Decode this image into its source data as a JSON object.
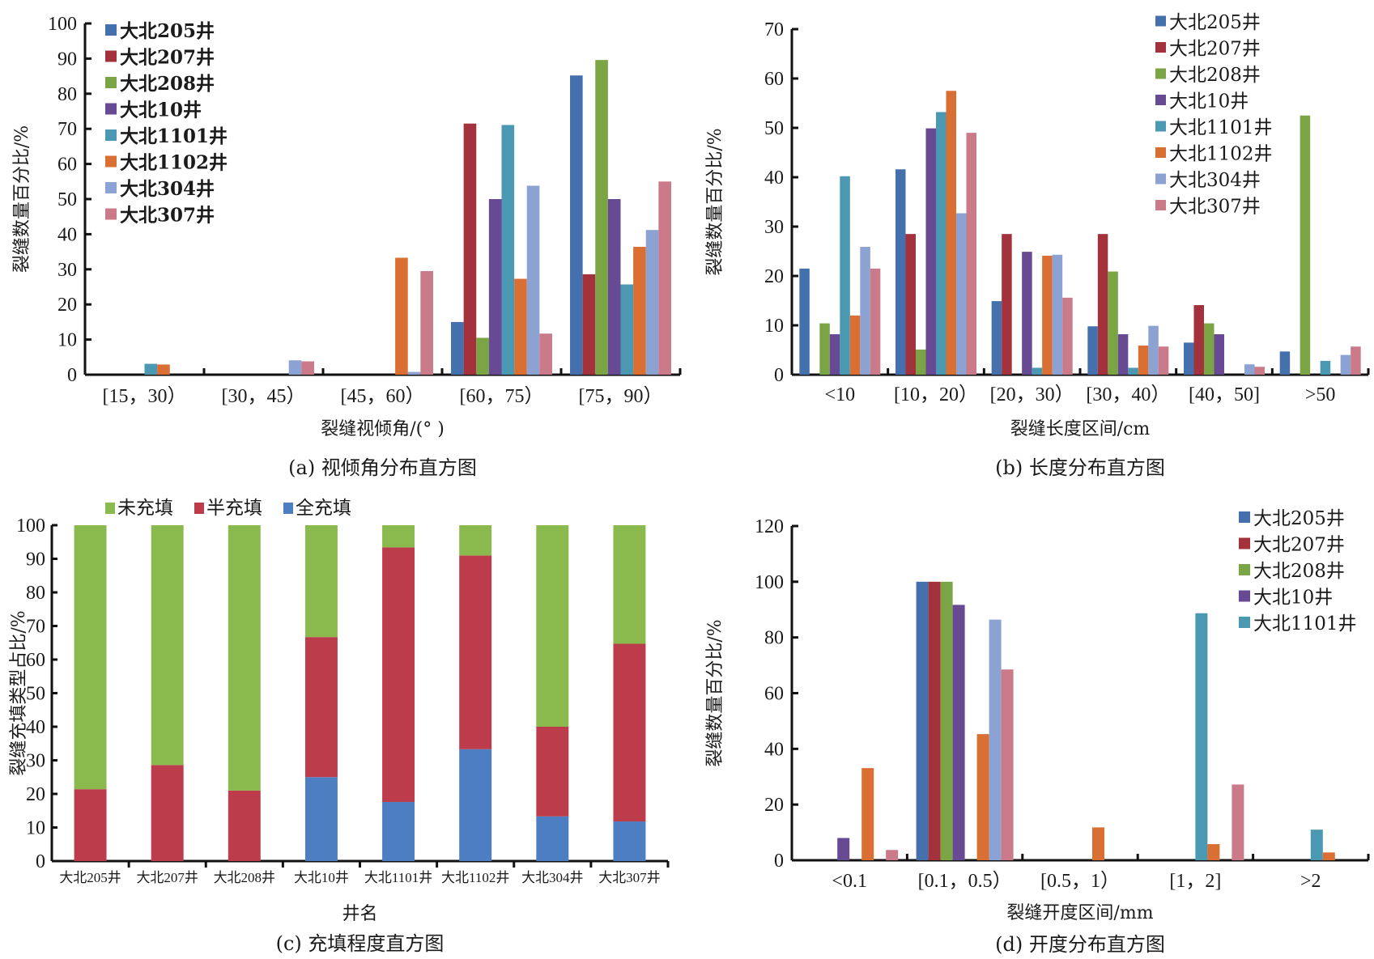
{
  "colors": {
    "大北205井": "#4470ae",
    "大北207井": "#a3323d",
    "大北208井": "#7ba444",
    "大北10井": "#674a93",
    "大北1101井": "#4a98b2",
    "大北1102井": "#d96f33",
    "大北304井": "#8ba2d2",
    "大北307井": "#cb7a89",
    "未充填": "#8aba4e",
    "半充填": "#bc3c4c",
    "全充填": "#4e7ec2"
  },
  "chart_data": [
    {
      "id": "a",
      "type": "bar",
      "caption": "(a) 视倾角分布直方图",
      "title": "",
      "xlabel": "裂缝视倾角/(° )",
      "ylabel": "裂缝数量百分比/%",
      "ylim": [
        0,
        100
      ],
      "yticks": [
        0,
        10,
        20,
        30,
        40,
        50,
        60,
        70,
        80,
        90,
        100
      ],
      "legend_position": "top-left",
      "categories": [
        "[15, 30)",
        "[30, 45)",
        "[45, 60)",
        "[60, 75)",
        "[75, 90)"
      ],
      "category_labels": [
        "[15，30）",
        "[30，45）",
        "[45，60）",
        "[60，75）",
        "[75，90）"
      ],
      "series": [
        {
          "name": "大北205井",
          "values": [
            0,
            0,
            0,
            15.0,
            85.2
          ]
        },
        {
          "name": "大北207井",
          "values": [
            0,
            0,
            0,
            71.5,
            28.6
          ]
        },
        {
          "name": "大北208井",
          "values": [
            0,
            0,
            0,
            10.5,
            89.6
          ]
        },
        {
          "name": "大北10井",
          "values": [
            0,
            0,
            0,
            50.0,
            50.0
          ]
        },
        {
          "name": "大北1101井",
          "values": [
            3.1,
            0,
            0,
            71.1,
            25.7
          ]
        },
        {
          "name": "大北1102井",
          "values": [
            2.9,
            0,
            33.3,
            27.3,
            36.4
          ]
        },
        {
          "name": "大北304井",
          "values": [
            0,
            4.1,
            0.8,
            53.8,
            41.2
          ]
        },
        {
          "name": "大北307井",
          "values": [
            0,
            3.8,
            29.5,
            11.7,
            55.0
          ]
        }
      ]
    },
    {
      "id": "b",
      "type": "bar",
      "caption": "(b) 长度分布直方图",
      "title": "",
      "xlabel": "裂缝长度区间/cm",
      "ylabel": "裂缝数量百分比/%",
      "ylim": [
        0,
        70
      ],
      "yticks": [
        0,
        10,
        20,
        30,
        40,
        50,
        60,
        70
      ],
      "legend_position": "top-right",
      "categories": [
        "<10",
        "[10, 20)",
        "[20, 30)",
        "[30, 40)",
        "[40, 50]",
        ">50"
      ],
      "category_labels": [
        "<10",
        "[10，20）",
        "[20，30）",
        "[30，40）",
        "[40，50]",
        ">50"
      ],
      "series": [
        {
          "name": "大北205井",
          "values": [
            21.5,
            41.6,
            14.9,
            9.8,
            6.5,
            4.7
          ]
        },
        {
          "name": "大北207井",
          "values": [
            0,
            28.5,
            28.5,
            28.5,
            14.1,
            0
          ]
        },
        {
          "name": "大北208井",
          "values": [
            10.4,
            5.1,
            0,
            20.9,
            10.4,
            52.5
          ]
        },
        {
          "name": "大北10井",
          "values": [
            8.2,
            49.9,
            24.9,
            8.2,
            8.2,
            0
          ]
        },
        {
          "name": "大北1101井",
          "values": [
            40.2,
            53.2,
            1.4,
            1.4,
            0,
            2.8
          ]
        },
        {
          "name": "大北1102井",
          "values": [
            12.0,
            57.5,
            24.1,
            5.9,
            0,
            0
          ]
        },
        {
          "name": "大北304井",
          "values": [
            25.9,
            32.7,
            24.3,
            9.9,
            2.1,
            4.0
          ]
        },
        {
          "name": "大北307井",
          "values": [
            21.5,
            49.0,
            15.6,
            5.7,
            1.6,
            5.7
          ]
        }
      ]
    },
    {
      "id": "c",
      "type": "bar",
      "stacked": true,
      "caption": "(c) 充填程度直方图",
      "title": "",
      "xlabel": "井名",
      "ylabel": "裂缝充填类型占比/%",
      "ylim": [
        0,
        100
      ],
      "yticks": [
        0,
        10,
        20,
        30,
        40,
        50,
        60,
        70,
        80,
        90,
        100
      ],
      "legend_position": "top",
      "categories": [
        "大北205井",
        "大北207井",
        "大北208井",
        "大北10井",
        "大北1101井",
        "大北1102井",
        "大北304井",
        "大北307井"
      ],
      "series": [
        {
          "name": "全充填",
          "values": [
            0,
            0,
            0,
            25.0,
            17.6,
            33.3,
            13.3,
            11.8
          ]
        },
        {
          "name": "半充填",
          "values": [
            21.4,
            28.6,
            21.0,
            41.7,
            75.8,
            57.7,
            26.7,
            52.9
          ]
        },
        {
          "name": "未充填",
          "values": [
            78.6,
            71.4,
            79.0,
            33.3,
            6.6,
            9.0,
            60.0,
            35.3
          ]
        }
      ],
      "legend_order": [
        "未充填",
        "半充填",
        "全充填"
      ]
    },
    {
      "id": "d",
      "type": "bar",
      "caption": "(d) 开度分布直方图",
      "title": "",
      "xlabel": "裂缝开度区间/mm",
      "ylabel": "裂缝数量百分比/%",
      "ylim": [
        0,
        120
      ],
      "yticks": [
        0,
        20,
        40,
        60,
        80,
        100,
        120
      ],
      "legend_position": "top-right",
      "legend_entries": [
        "大北205井",
        "大北207井",
        "大北208井",
        "大北10井",
        "大北1101井"
      ],
      "categories": [
        "<0.1",
        "[0.1, 0.5)",
        "[0.5, 1)",
        "[1, 2]",
        ">2"
      ],
      "category_labels": [
        "<0.1",
        "[0.1，0.5）",
        "[0.5，1）",
        "[1，2]",
        ">2"
      ],
      "series": [
        {
          "name": "大北205井",
          "values": [
            0,
            100,
            0,
            0,
            0
          ]
        },
        {
          "name": "大北207井",
          "values": [
            0,
            100,
            0,
            0,
            0
          ]
        },
        {
          "name": "大北208井",
          "values": [
            0,
            100,
            0,
            0,
            0
          ]
        },
        {
          "name": "大北10井",
          "values": [
            8.0,
            91.7,
            0,
            0,
            0
          ]
        },
        {
          "name": "大北1101井",
          "values": [
            0,
            0,
            0,
            88.7,
            11.0
          ]
        },
        {
          "name": "大北1102井",
          "values": [
            33.1,
            45.3,
            11.8,
            5.8,
            2.8
          ]
        },
        {
          "name": "大北304井",
          "values": [
            0,
            86.4,
            0,
            0,
            0
          ]
        },
        {
          "name": "大北307井",
          "values": [
            3.7,
            68.5,
            0,
            27.2,
            0
          ]
        }
      ]
    }
  ]
}
